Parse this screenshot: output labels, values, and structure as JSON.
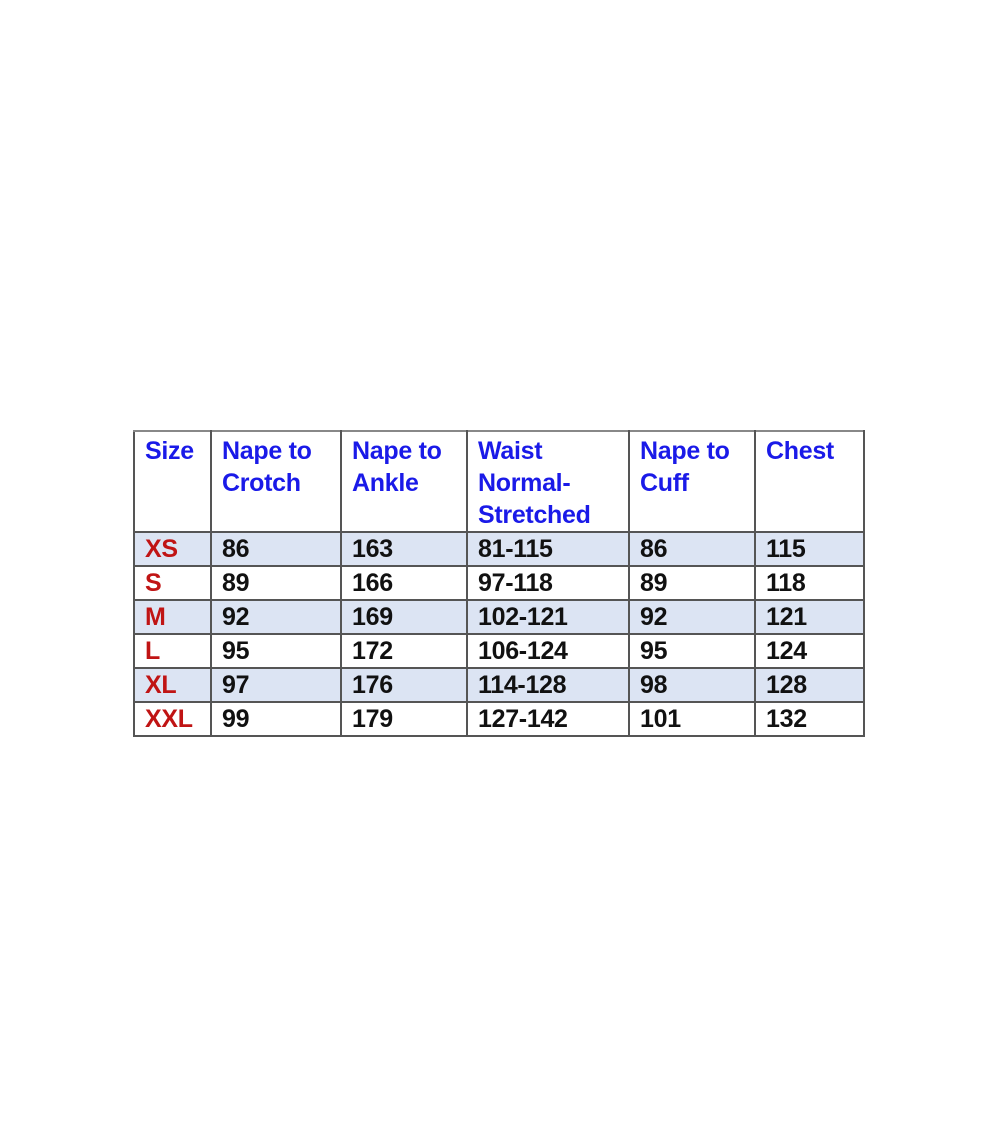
{
  "colors": {
    "header_text": "#1a1ae8",
    "size_text": "#c01414",
    "alt_row_bg": "#dce4f3"
  },
  "table": {
    "headers": [
      [
        "Size"
      ],
      [
        "Nape to",
        "Crotch"
      ],
      [
        "Nape to",
        "Ankle"
      ],
      [
        "Waist",
        "Normal-",
        "Stretched"
      ],
      [
        "Nape to",
        "Cuff"
      ],
      [
        "Chest"
      ]
    ],
    "rows": [
      [
        "XS",
        "86",
        "163",
        "81-115",
        "86",
        "115"
      ],
      [
        "S",
        "89",
        "166",
        "97-118",
        "89",
        "118"
      ],
      [
        "M",
        "92",
        "169",
        "102-121",
        "92",
        "121"
      ],
      [
        "L",
        "95",
        "172",
        "106-124",
        "95",
        "124"
      ],
      [
        "XL",
        "97",
        "176",
        "114-128",
        "98",
        "128"
      ],
      [
        "XXL",
        "99",
        "179",
        "127-142",
        "101",
        "132"
      ]
    ]
  }
}
